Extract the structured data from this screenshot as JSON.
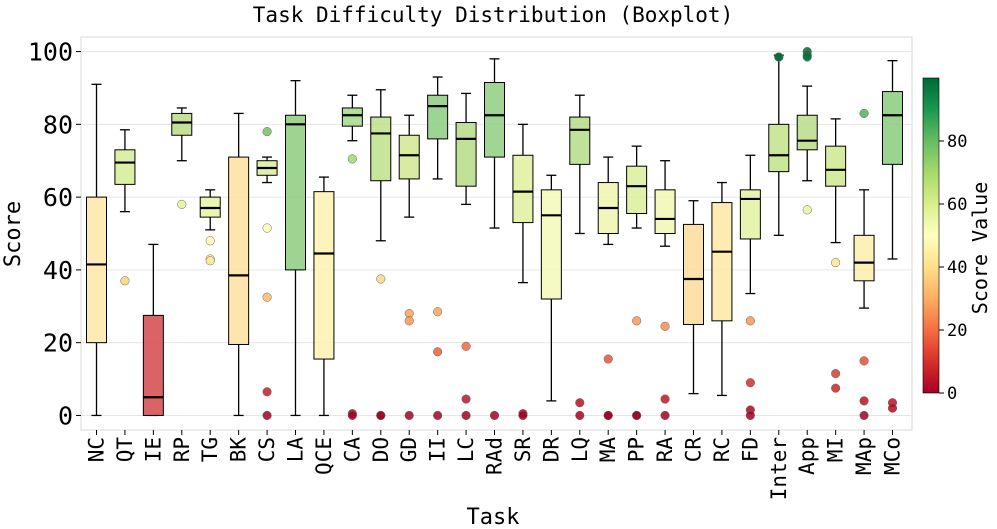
{
  "chart_data": {
    "type": "boxplot",
    "title": "Task Difficulty Distribution (Boxplot)",
    "xlabel": "Task",
    "ylabel": "Score",
    "ylim": [
      -4,
      104
    ],
    "yticks": [
      0,
      20,
      40,
      60,
      80,
      100
    ],
    "grid": true,
    "colorbar": {
      "label": "Score Value",
      "range": [
        0,
        100
      ],
      "ticks": [
        0,
        20,
        40,
        60,
        80
      ],
      "colormap": "RdYlGn"
    },
    "tasks": [
      {
        "name": "NC",
        "whislo": 0,
        "q1": 20,
        "med": 41.5,
        "q3": 60,
        "whishi": 91,
        "fliers": [],
        "color": "#fde7a6"
      },
      {
        "name": "QT",
        "whislo": 56,
        "q1": 63.5,
        "med": 69.5,
        "q3": 73,
        "whishi": 78.5,
        "fliers": [
          37
        ],
        "color": "#d5ec95"
      },
      {
        "name": "IE",
        "whislo": 0,
        "q1": 0,
        "med": 5,
        "q3": 27.5,
        "whishi": 47,
        "fliers": [],
        "color": "#d4484a"
      },
      {
        "name": "RP",
        "whislo": 70,
        "q1": 77,
        "med": 80.5,
        "q3": 83,
        "whishi": 84.5,
        "fliers": [
          58
        ],
        "color": "#b9dd85"
      },
      {
        "name": "TG",
        "whislo": 51,
        "q1": 54.5,
        "med": 57,
        "q3": 60,
        "whishi": 62,
        "fliers": [
          48,
          43,
          42.5
        ],
        "color": "#e8f3a2"
      },
      {
        "name": "BK",
        "whislo": 0,
        "q1": 19.5,
        "med": 38.5,
        "q3": 71,
        "whishi": 83,
        "fliers": [],
        "color": "#fee0a0"
      },
      {
        "name": "CS",
        "whislo": 64,
        "q1": 66,
        "med": 68,
        "q3": 70,
        "whishi": 71,
        "fliers": [
          78,
          51.5,
          32.5,
          6.5,
          0
        ],
        "color": "#d9ee9a"
      },
      {
        "name": "LA",
        "whislo": 0,
        "q1": 40,
        "med": 80,
        "q3": 82.5,
        "whishi": 92,
        "fliers": [],
        "color": "#8ccc7f"
      },
      {
        "name": "QCE",
        "whislo": 0,
        "q1": 15.5,
        "med": 44.5,
        "q3": 61.5,
        "whishi": 65.5,
        "fliers": [],
        "color": "#fdf2b0"
      },
      {
        "name": "CA",
        "whislo": 75.5,
        "q1": 79.5,
        "med": 82.5,
        "q3": 84.5,
        "whishi": 88,
        "fliers": [
          70.5,
          0.5,
          0
        ],
        "color": "#a5d98b"
      },
      {
        "name": "DO",
        "whislo": 48,
        "q1": 64.5,
        "med": 77.5,
        "q3": 82,
        "whishi": 89.5,
        "fliers": [
          37.5,
          0,
          0
        ],
        "color": "#bde089"
      },
      {
        "name": "GD",
        "whislo": 54.5,
        "q1": 65,
        "med": 71.5,
        "q3": 77,
        "whishi": 82.5,
        "fliers": [
          28,
          26,
          0
        ],
        "color": "#d0e990"
      },
      {
        "name": "II",
        "whislo": 65,
        "q1": 76,
        "med": 85,
        "q3": 88,
        "whishi": 93,
        "fliers": [
          28.5,
          17.5,
          0
        ],
        "color": "#8dcd80"
      },
      {
        "name": "LC",
        "whislo": 58,
        "q1": 63,
        "med": 76,
        "q3": 80.5,
        "whishi": 88.5,
        "fliers": [
          19,
          4.5,
          0
        ],
        "color": "#b6dc86"
      },
      {
        "name": "RAd",
        "whislo": 51.5,
        "q1": 71,
        "med": 82.5,
        "q3": 91.5,
        "whishi": 98,
        "fliers": [
          0
        ],
        "color": "#8fce81"
      },
      {
        "name": "SR",
        "whislo": 36.5,
        "q1": 53,
        "med": 61.5,
        "q3": 71.5,
        "whishi": 80,
        "fliers": [
          0.5,
          0
        ],
        "color": "#e0f09e"
      },
      {
        "name": "DR",
        "whislo": 4,
        "q1": 32,
        "med": 55,
        "q3": 62,
        "whishi": 66,
        "fliers": [],
        "color": "#f3f8b9"
      },
      {
        "name": "LQ",
        "whislo": 50,
        "q1": 69,
        "med": 78.5,
        "q3": 82,
        "whishi": 88,
        "fliers": [
          3.5,
          0
        ],
        "color": "#b4dc86"
      },
      {
        "name": "MA",
        "whislo": 47,
        "q1": 50,
        "med": 57,
        "q3": 64,
        "whishi": 71,
        "fliers": [
          15.5,
          0,
          0
        ],
        "color": "#eef6ae"
      },
      {
        "name": "PP",
        "whislo": 51.5,
        "q1": 55.5,
        "med": 63,
        "q3": 68.5,
        "whishi": 74,
        "fliers": [
          26,
          0,
          0
        ],
        "color": "#dcef9b"
      },
      {
        "name": "RA",
        "whislo": 46.5,
        "q1": 50,
        "med": 54,
        "q3": 62,
        "whishi": 70,
        "fliers": [
          24.5,
          4.5,
          0
        ],
        "color": "#f0f7b3"
      },
      {
        "name": "CR",
        "whislo": 6,
        "q1": 25,
        "med": 37.5,
        "q3": 52.5,
        "whishi": 59,
        "fliers": [],
        "color": "#fddc99"
      },
      {
        "name": "RC",
        "whislo": 5.5,
        "q1": 26,
        "med": 45,
        "q3": 58.5,
        "whishi": 64,
        "fliers": [],
        "color": "#fee7a5"
      },
      {
        "name": "FD",
        "whislo": 33.5,
        "q1": 48.5,
        "med": 59.5,
        "q3": 62,
        "whishi": 71.5,
        "fliers": [
          26,
          9,
          1.5,
          0
        ],
        "color": "#e3f2a1"
      },
      {
        "name": "Inter",
        "whislo": 49.5,
        "q1": 67,
        "med": 71.5,
        "q3": 80,
        "whishi": 99,
        "fliers": [
          98.5,
          98.5
        ],
        "color": "#c1e38b"
      },
      {
        "name": "App",
        "whislo": 64.5,
        "q1": 73,
        "med": 75.5,
        "q3": 82.5,
        "whishi": 90.5,
        "fliers": [
          100,
          99,
          98.5,
          56.5
        ],
        "color": "#b7dd87"
      },
      {
        "name": "MI",
        "whislo": 47.5,
        "q1": 63,
        "med": 67.5,
        "q3": 74,
        "whishi": 81.5,
        "fliers": [
          42,
          11.5,
          7.5
        ],
        "color": "#cde88f"
      },
      {
        "name": "MAp",
        "whislo": 29.5,
        "q1": 37,
        "med": 42,
        "q3": 49.5,
        "whishi": 62,
        "fliers": [
          83,
          15,
          4,
          0
        ],
        "color": "#fdedac"
      },
      {
        "name": "MCo",
        "whislo": 43,
        "q1": 69,
        "med": 82.5,
        "q3": 89,
        "whishi": 97.5,
        "fliers": [
          3.5,
          2
        ],
        "color": "#8acb7e"
      }
    ]
  }
}
